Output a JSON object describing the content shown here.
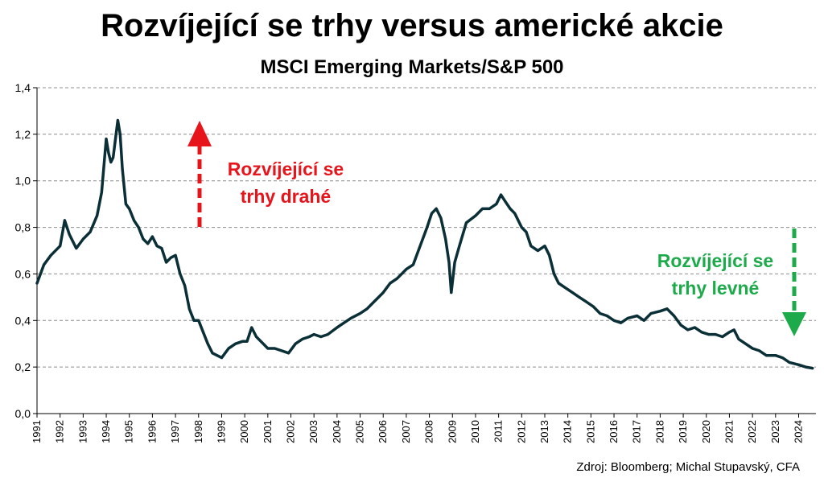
{
  "header": {
    "title": "Rozvíjející se trhy versus americké akcie",
    "subtitle": "MSCI Emerging Markets/S&P 500"
  },
  "footer": {
    "source": "Zdroj: Bloomberg; Michal Stupavský, CFA"
  },
  "colors": {
    "line": "#0b2f36",
    "grid": "#8c8c8c",
    "red": "#e8141b",
    "green": "#1daa4a"
  },
  "chart_data": {
    "type": "line",
    "title": "Rozvíjející se trhy versus americké akcie",
    "subtitle": "MSCI Emerging Markets/S&P 500",
    "xlabel": "",
    "ylabel": "",
    "ylim": [
      0,
      1.4
    ],
    "xlim": [
      1991,
      2024.75
    ],
    "grid": "horizontal",
    "y_ticks": [
      "0,0",
      "0,2",
      "0,4",
      "0,6",
      "0,8",
      "1,0",
      "1,2",
      "1,4"
    ],
    "x_ticks": [
      "1991",
      "1992",
      "1993",
      "1994",
      "1995",
      "1996",
      "1997",
      "1998",
      "1999",
      "2000",
      "2001",
      "2002",
      "2003",
      "2004",
      "2005",
      "2006",
      "2007",
      "2008",
      "2009",
      "2010",
      "2011",
      "2012",
      "2013",
      "2014",
      "2015",
      "2016",
      "2017",
      "2018",
      "2019",
      "2020",
      "2021",
      "2022",
      "2023",
      "2024"
    ],
    "series": [
      {
        "x": [
          1991.0,
          1991.3,
          1991.6,
          1992.0,
          1992.2,
          1992.4,
          1992.7,
          1993.0,
          1993.3,
          1993.6,
          1993.8,
          1994.0,
          1994.1,
          1994.2,
          1994.3,
          1994.4,
          1994.5,
          1994.6,
          1994.7,
          1994.85,
          1995.0,
          1995.2,
          1995.4,
          1995.6,
          1995.8,
          1996.0,
          1996.2,
          1996.4,
          1996.6,
          1996.8,
          1997.0,
          1997.2,
          1997.4,
          1997.6,
          1997.8,
          1998.0,
          1998.2,
          1998.4,
          1998.6,
          1998.8,
          1999.0,
          1999.3,
          1999.6,
          1999.9,
          2000.1,
          2000.3,
          2000.5,
          2000.8,
          2001.0,
          2001.3,
          2001.6,
          2001.9,
          2002.2,
          2002.5,
          2002.8,
          2003.0,
          2003.3,
          2003.6,
          2004.0,
          2004.3,
          2004.6,
          2005.0,
          2005.3,
          2005.6,
          2006.0,
          2006.3,
          2006.6,
          2007.0,
          2007.3,
          2007.6,
          2007.9,
          2008.1,
          2008.3,
          2008.5,
          2008.7,
          2008.85,
          2008.95,
          2009.1,
          2009.3,
          2009.6,
          2010.0,
          2010.3,
          2010.6,
          2010.9,
          2011.1,
          2011.3,
          2011.5,
          2011.7,
          2012.0,
          2012.2,
          2012.4,
          2012.7,
          2013.0,
          2013.2,
          2013.4,
          2013.6,
          2013.9,
          2014.2,
          2014.5,
          2014.8,
          2015.1,
          2015.4,
          2015.7,
          2016.0,
          2016.3,
          2016.6,
          2017.0,
          2017.3,
          2017.6,
          2018.0,
          2018.3,
          2018.6,
          2018.9,
          2019.2,
          2019.5,
          2019.8,
          2020.1,
          2020.4,
          2020.7,
          2021.0,
          2021.2,
          2021.4,
          2021.7,
          2022.0,
          2022.3,
          2022.6,
          2023.0,
          2023.3,
          2023.6,
          2024.0,
          2024.3,
          2024.6
        ],
        "values": [
          0.56,
          0.64,
          0.68,
          0.72,
          0.83,
          0.77,
          0.71,
          0.75,
          0.78,
          0.85,
          0.95,
          1.18,
          1.12,
          1.08,
          1.1,
          1.18,
          1.26,
          1.2,
          1.05,
          0.9,
          0.88,
          0.83,
          0.8,
          0.75,
          0.73,
          0.76,
          0.72,
          0.71,
          0.65,
          0.67,
          0.68,
          0.6,
          0.55,
          0.45,
          0.4,
          0.4,
          0.35,
          0.3,
          0.26,
          0.25,
          0.24,
          0.28,
          0.3,
          0.31,
          0.31,
          0.37,
          0.33,
          0.3,
          0.28,
          0.28,
          0.27,
          0.26,
          0.3,
          0.32,
          0.33,
          0.34,
          0.33,
          0.34,
          0.37,
          0.39,
          0.41,
          0.43,
          0.45,
          0.48,
          0.52,
          0.56,
          0.58,
          0.62,
          0.64,
          0.72,
          0.8,
          0.86,
          0.88,
          0.84,
          0.75,
          0.65,
          0.52,
          0.65,
          0.72,
          0.82,
          0.85,
          0.88,
          0.88,
          0.9,
          0.94,
          0.91,
          0.88,
          0.86,
          0.8,
          0.78,
          0.72,
          0.7,
          0.72,
          0.68,
          0.6,
          0.56,
          0.54,
          0.52,
          0.5,
          0.48,
          0.46,
          0.43,
          0.42,
          0.4,
          0.39,
          0.41,
          0.42,
          0.4,
          0.43,
          0.44,
          0.45,
          0.42,
          0.38,
          0.36,
          0.37,
          0.35,
          0.34,
          0.34,
          0.33,
          0.35,
          0.36,
          0.32,
          0.3,
          0.28,
          0.27,
          0.25,
          0.25,
          0.24,
          0.22,
          0.21,
          0.2,
          0.195
        ]
      }
    ],
    "annotations": [
      {
        "text_lines": [
          "Rozvíjející se",
          "trhy drahé"
        ],
        "color": "#e8141b",
        "arrow": "up"
      },
      {
        "text_lines": [
          "Rozvíjející se",
          "trhy levné"
        ],
        "color": "#1daa4a",
        "arrow": "down"
      }
    ]
  }
}
